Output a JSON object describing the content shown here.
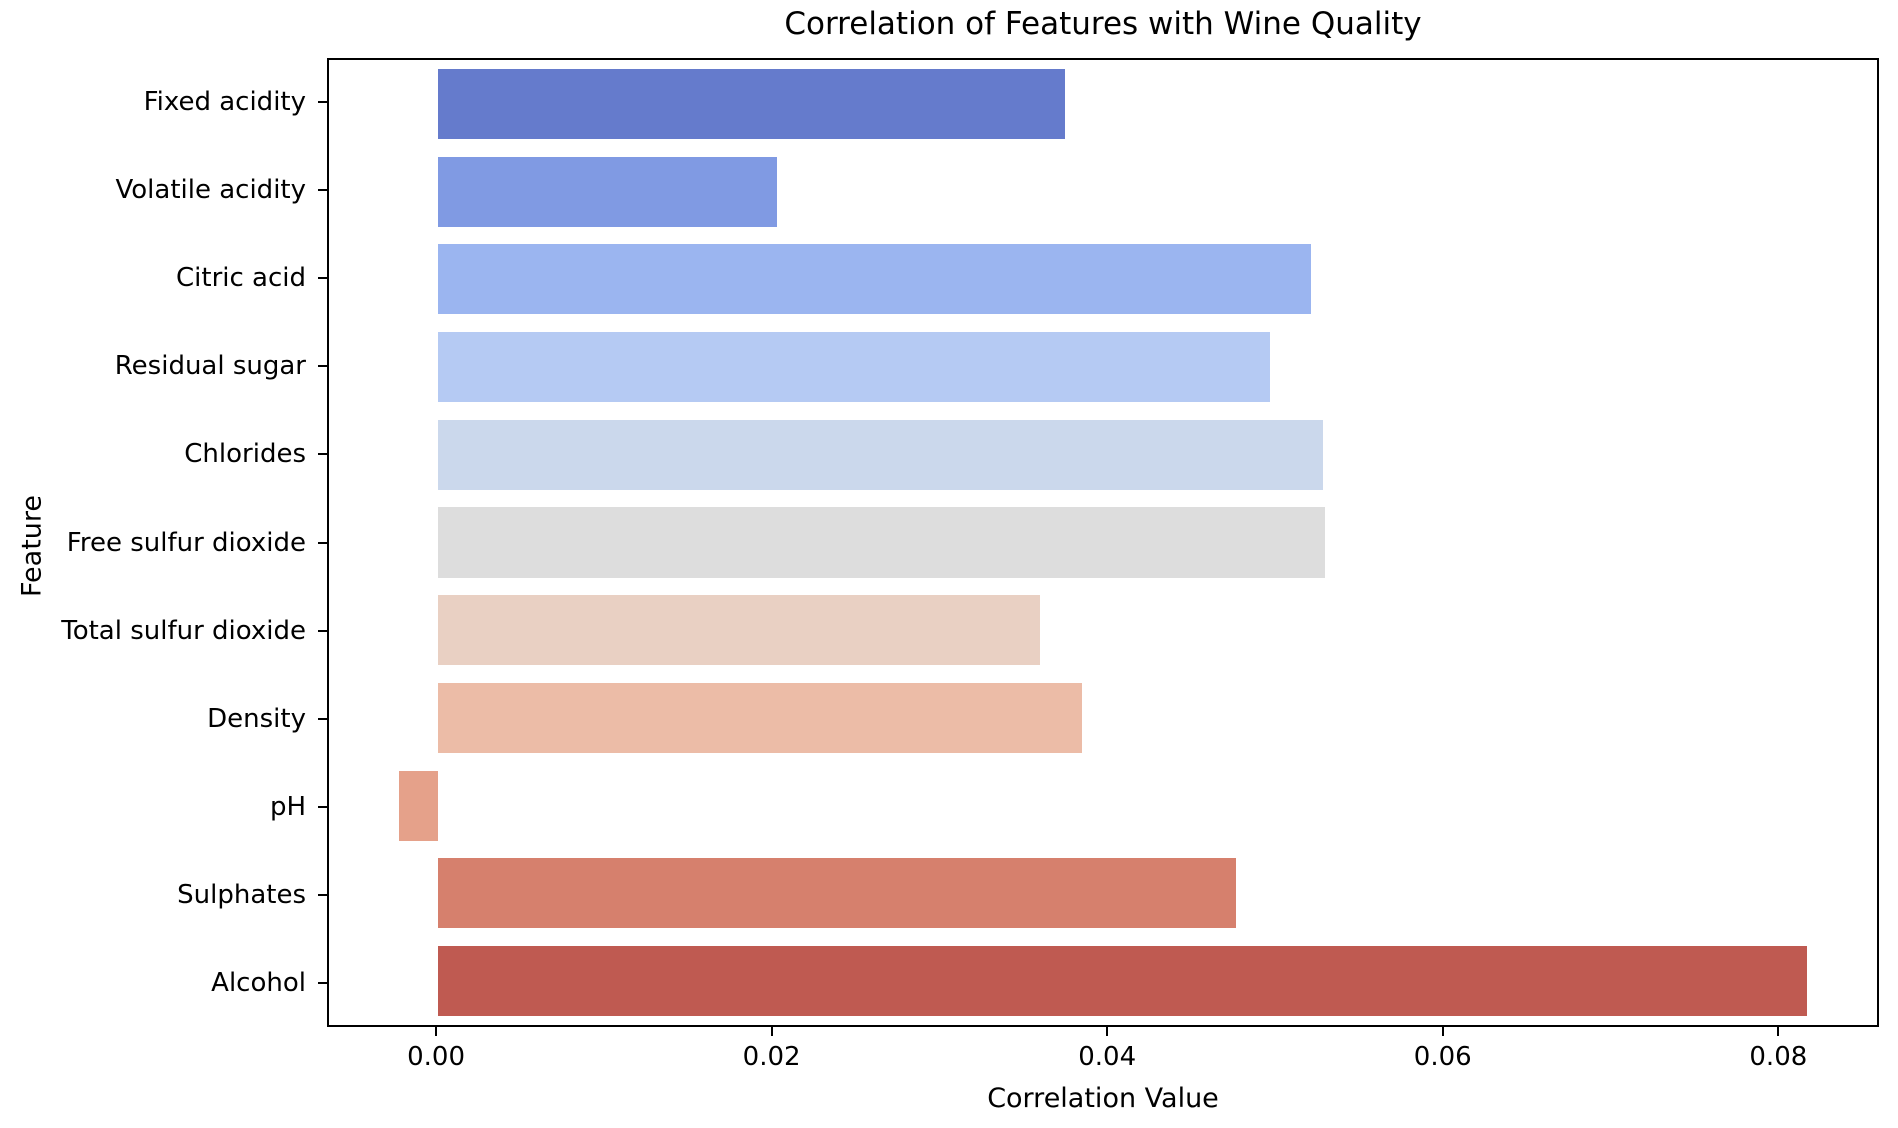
{
  "figure": {
    "title": "Correlation of Features with Wine Quality",
    "background_color": "#ffffff",
    "text_color": "#000000"
  },
  "chart_data": {
    "type": "bar",
    "orientation": "horizontal",
    "title": "Correlation of Features with Wine Quality",
    "xlabel": "Correlation Value",
    "ylabel": "Feature",
    "categories": [
      "Fixed acidity",
      "Volatile acidity",
      "Citric acid",
      "Residual sugar",
      "Chlorides",
      "Free sulfur dioxide",
      "Total sulfur dioxide",
      "Density",
      "pH",
      "Sulphates",
      "Alcohol"
    ],
    "values": [
      0.0375,
      0.0203,
      0.0522,
      0.0497,
      0.0529,
      0.053,
      0.036,
      0.0385,
      -0.0023,
      0.0477,
      0.0818
    ],
    "bar_colors": [
      "#657bcc",
      "#809ae3",
      "#9bb5f0",
      "#b5caf3",
      "#cbd8ec",
      "#dddddd",
      "#e9d0c3",
      "#ecbca7",
      "#e5a18a",
      "#d6806d",
      "#bf5a51"
    ],
    "xlim": [
      -0.0065,
      0.086
    ],
    "xticks": [
      0.0,
      0.02,
      0.04,
      0.06,
      0.08
    ],
    "xtick_labels": [
      "0.00",
      "0.02",
      "0.04",
      "0.06",
      "0.08"
    ],
    "grid": false,
    "legend": null,
    "bar_fraction_of_row": 0.8,
    "axis_color": "#000000"
  }
}
